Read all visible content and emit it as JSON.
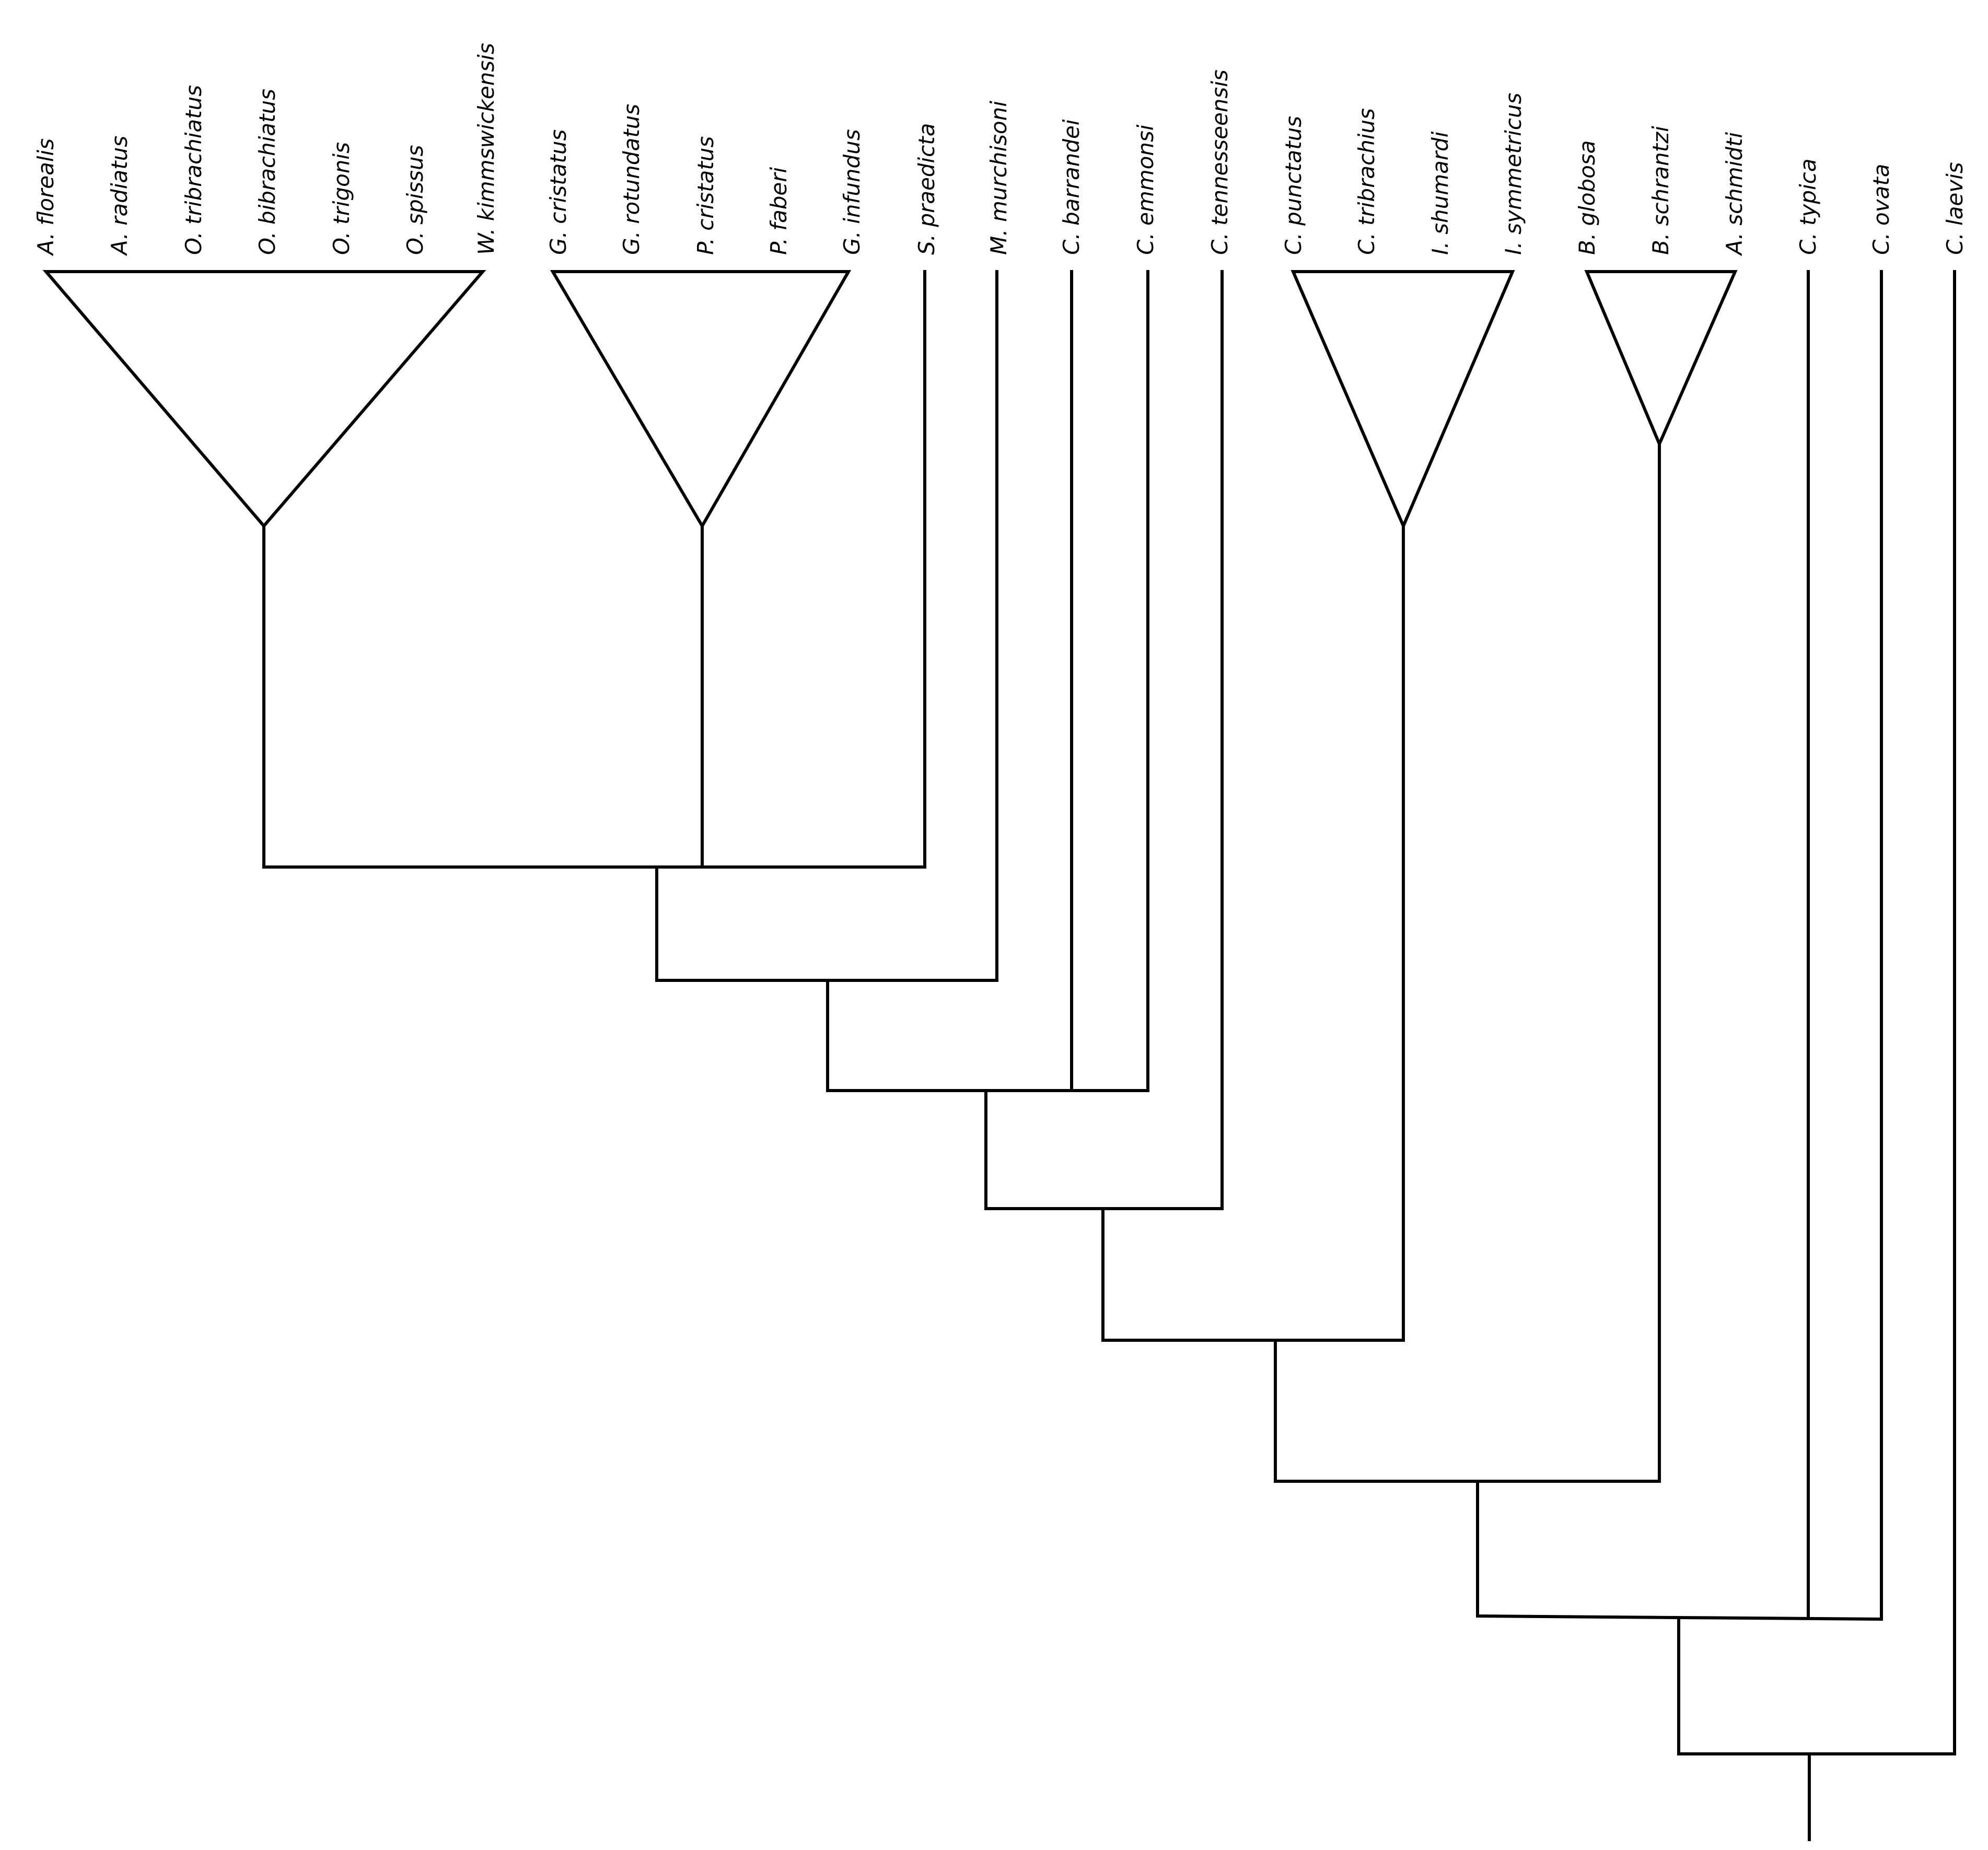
{
  "tree": {
    "stroke_color": "#000000",
    "background": "#ffffff",
    "taxa": [
      "A. florealis",
      "A. radiatus",
      "O. tribrachiatus",
      "O. bibrachiatus",
      "O. trigonis",
      "O. spissus",
      "W. kimmswickensis",
      "G. cristatus",
      "G. rotundatus",
      "P. cristatus",
      "P. faberi",
      "G. infundus",
      "S. praedicta",
      "M. murchisoni",
      "C. barrandei",
      "C. emmonsi",
      "C. tennesseensis",
      "C. punctatus",
      "C. tribrachius",
      "I. shumardi",
      "I. symmetricus",
      "B. globosa",
      "B. schrantzi",
      "A. schmidti",
      "C. typica",
      "C. ovata",
      "C. laevis"
    ],
    "collapsed_clades": [
      {
        "id": "clade-a",
        "first_taxon": 0,
        "last_taxon": 6
      },
      {
        "id": "clade-b",
        "first_taxon": 7,
        "last_taxon": 11
      },
      {
        "id": "clade-c",
        "first_taxon": 17,
        "last_taxon": 20
      },
      {
        "id": "clade-d",
        "first_taxon": 21,
        "last_taxon": 23
      }
    ]
  }
}
